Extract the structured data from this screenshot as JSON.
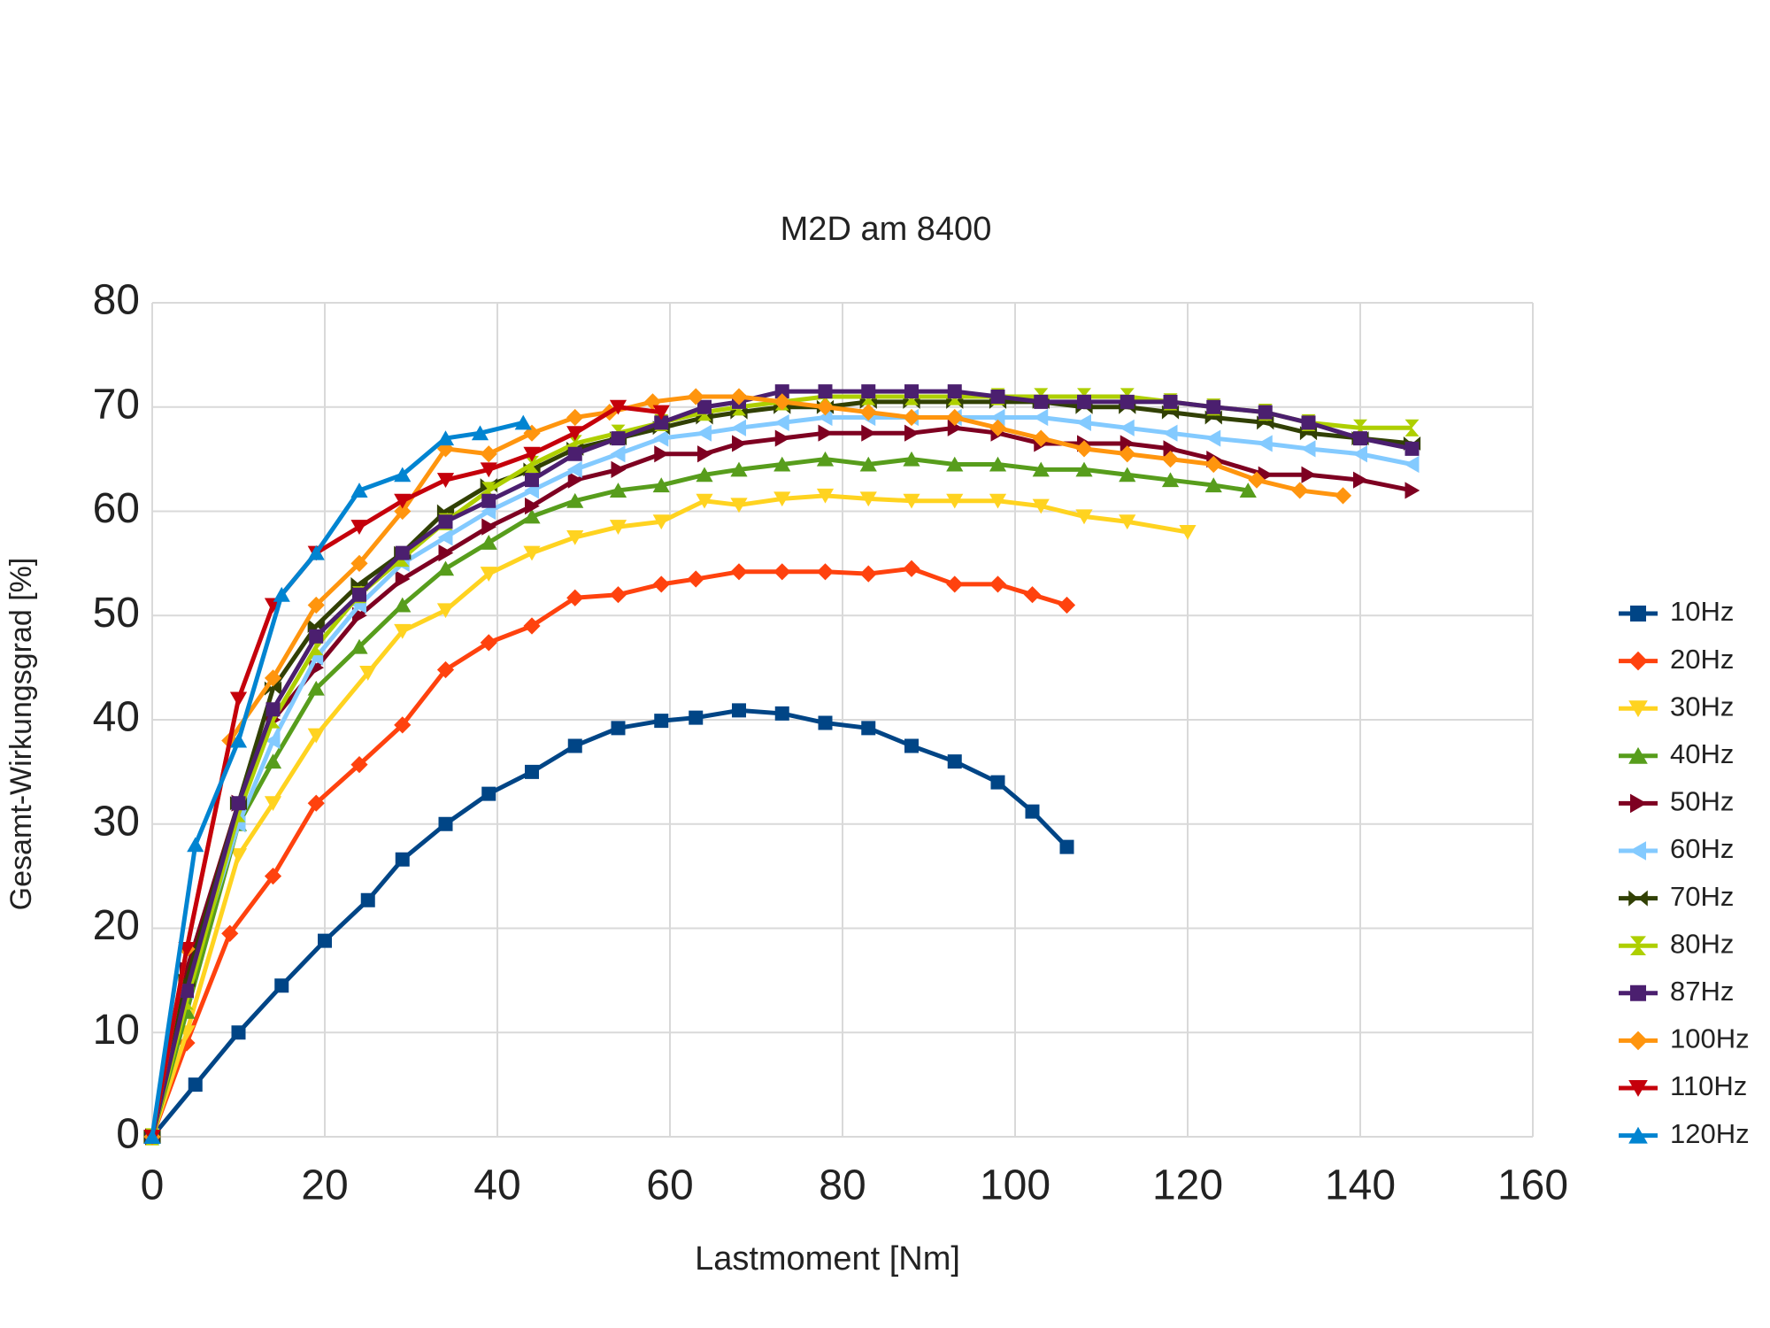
{
  "chart_data": {
    "type": "line",
    "title": "M2D am 8400",
    "x_label": "Lastmoment [Nm]",
    "y_label": "Gesamt-Wirkungsgrad [%]",
    "xlim": [
      0,
      160
    ],
    "xticks": [
      0,
      20,
      40,
      60,
      80,
      100,
      120,
      140,
      160
    ],
    "ylim": [
      0,
      80
    ],
    "yticks": [
      0,
      10,
      20,
      30,
      40,
      50,
      60,
      70,
      80
    ],
    "grid": true,
    "legend": "right",
    "series": [
      {
        "name": "10Hz",
        "color": "#004586",
        "marker": "square",
        "x": [
          0,
          5,
          10,
          15,
          20,
          25,
          29,
          34,
          39,
          44,
          49,
          54,
          59,
          63,
          68,
          73,
          78,
          83,
          88,
          93,
          98,
          102,
          106
        ],
        "values": [
          0,
          5,
          10,
          14.5,
          18.8,
          22.7,
          26.6,
          30,
          32.9,
          35,
          37.5,
          39.2,
          39.9,
          40.2,
          40.9,
          40.6,
          39.7,
          39.2,
          37.5,
          36,
          34,
          31.2,
          27.8
        ]
      },
      {
        "name": "20Hz",
        "color": "#ff420e",
        "marker": "diamond",
        "x": [
          0,
          4,
          9,
          14,
          19,
          24,
          29,
          34,
          39,
          44,
          49,
          54,
          59,
          63,
          68,
          73,
          78,
          83,
          88,
          93,
          98,
          102,
          106
        ],
        "values": [
          0,
          9,
          19.5,
          25,
          32,
          35.7,
          39.5,
          44.8,
          47.4,
          49,
          51.7,
          52,
          53,
          53.5,
          54.2,
          54.2,
          54.2,
          54,
          54.5,
          53,
          53,
          52,
          51
        ]
      },
      {
        "name": "30Hz",
        "color": "#ffd320",
        "marker": "triangle-down",
        "x": [
          0,
          4,
          10,
          14,
          19,
          25,
          29,
          34,
          39,
          44,
          49,
          54,
          59,
          64,
          68,
          73,
          78,
          83,
          88,
          93,
          98,
          103,
          108,
          113,
          120
        ],
        "values": [
          0,
          10,
          27,
          32,
          38.5,
          44.5,
          48.5,
          50.5,
          54,
          56,
          57.5,
          58.5,
          59,
          61,
          60.6,
          61.2,
          61.5,
          61.2,
          61,
          61,
          61,
          60.5,
          59.5,
          59,
          58
        ]
      },
      {
        "name": "40Hz",
        "color": "#579d1c",
        "marker": "triangle-up",
        "x": [
          0,
          4,
          10,
          14,
          19,
          24,
          29,
          34,
          39,
          44,
          49,
          54,
          59,
          64,
          68,
          73,
          78,
          83,
          88,
          93,
          98,
          103,
          108,
          113,
          118,
          123,
          127
        ],
        "values": [
          0,
          12,
          30,
          36,
          43,
          47,
          51,
          54.5,
          57,
          59.5,
          61,
          62,
          62.5,
          63.5,
          64,
          64.5,
          65,
          64.5,
          65,
          64.5,
          64.5,
          64,
          64,
          63.5,
          63,
          62.5,
          62
        ]
      },
      {
        "name": "50Hz",
        "color": "#7e0021",
        "marker": "triangle-right",
        "x": [
          0,
          4,
          10,
          14,
          19,
          24,
          29,
          34,
          39,
          44,
          49,
          54,
          59,
          64,
          68,
          73,
          78,
          83,
          88,
          93,
          98,
          103,
          108,
          113,
          118,
          123,
          129,
          134,
          140,
          146
        ],
        "values": [
          0,
          16,
          32,
          40,
          45,
          50,
          53.5,
          56,
          58.5,
          60.5,
          63,
          64,
          65.5,
          65.5,
          66.5,
          67,
          67.5,
          67.5,
          67.5,
          68,
          67.5,
          66.5,
          66.5,
          66.5,
          66,
          65,
          63.5,
          63.5,
          63,
          62
        ]
      },
      {
        "name": "60Hz",
        "color": "#83caff",
        "marker": "triangle-left",
        "x": [
          0,
          4,
          10,
          14,
          19,
          24,
          29,
          34,
          39,
          44,
          49,
          54,
          59,
          64,
          68,
          73,
          78,
          83,
          88,
          93,
          98,
          103,
          108,
          113,
          118,
          123,
          129,
          134,
          140,
          146
        ],
        "values": [
          0,
          14,
          30,
          38,
          46,
          51,
          55,
          57.5,
          60,
          62,
          64,
          65.5,
          67,
          67.5,
          68,
          68.5,
          69,
          69,
          69,
          69,
          69,
          69,
          68.5,
          68,
          67.5,
          67,
          66.5,
          66,
          65.5,
          64.5
        ]
      },
      {
        "name": "70Hz",
        "color": "#314004",
        "marker": "bowtie",
        "x": [
          0,
          4,
          10,
          14,
          19,
          24,
          29,
          34,
          39,
          44,
          49,
          54,
          59,
          64,
          68,
          73,
          78,
          83,
          88,
          93,
          98,
          103,
          108,
          113,
          118,
          123,
          129,
          134,
          140,
          146
        ],
        "values": [
          0,
          15,
          32,
          43,
          49,
          53,
          56,
          60,
          62.5,
          64,
          66,
          67,
          68,
          69,
          69.5,
          70,
          70,
          70.5,
          70.5,
          70.5,
          70.5,
          70.5,
          70,
          70,
          69.5,
          69,
          68.5,
          67.5,
          67,
          66.5
        ]
      },
      {
        "name": "80Hz",
        "color": "#aecf00",
        "marker": "hourglass",
        "x": [
          0,
          4,
          10,
          14,
          19,
          24,
          29,
          34,
          39,
          44,
          49,
          54,
          59,
          64,
          68,
          73,
          78,
          83,
          88,
          93,
          98,
          103,
          108,
          113,
          118,
          123,
          129,
          134,
          140,
          146
        ],
        "values": [
          0,
          13,
          31,
          40,
          47,
          52,
          55.5,
          59,
          62,
          64.5,
          66.5,
          67.5,
          68.5,
          69.5,
          70,
          70.5,
          71,
          71,
          71,
          71,
          71,
          71,
          71,
          71,
          70.5,
          70,
          69.5,
          68.5,
          68,
          68
        ]
      },
      {
        "name": "87Hz",
        "color": "#4b1f6f",
        "marker": "square",
        "x": [
          0,
          4,
          10,
          14,
          19,
          24,
          29,
          34,
          39,
          44,
          49,
          54,
          59,
          64,
          68,
          73,
          78,
          83,
          88,
          93,
          98,
          103,
          108,
          113,
          118,
          123,
          129,
          134,
          140,
          146
        ],
        "values": [
          0,
          14,
          32,
          41,
          48,
          52,
          56,
          59,
          61,
          63,
          65.5,
          67,
          68.5,
          70,
          70.5,
          71.5,
          71.5,
          71.5,
          71.5,
          71.5,
          71,
          70.5,
          70.5,
          70.5,
          70.5,
          70,
          69.5,
          68.5,
          67,
          66
        ]
      },
      {
        "name": "100Hz",
        "color": "#ff950e",
        "marker": "diamond",
        "x": [
          0,
          4,
          9,
          14,
          19,
          24,
          29,
          34,
          39,
          44,
          49,
          53,
          58,
          63,
          68,
          73,
          78,
          83,
          88,
          93,
          98,
          103,
          108,
          113,
          118,
          123,
          128,
          133,
          138
        ],
        "values": [
          0,
          18,
          38,
          44,
          51,
          55,
          60,
          66,
          65.5,
          67.5,
          69,
          69.5,
          70.5,
          71,
          71,
          70.5,
          70,
          69.5,
          69,
          69,
          68,
          67,
          66,
          65.5,
          65,
          64.5,
          63,
          62,
          61.5
        ]
      },
      {
        "name": "110Hz",
        "color": "#c5000b",
        "marker": "triangle-down",
        "x": [
          0,
          4,
          10,
          14,
          19,
          24,
          29,
          34,
          39,
          44,
          49,
          54,
          59
        ],
        "values": [
          0,
          18,
          42,
          51,
          56,
          58.5,
          61,
          63,
          64,
          65.5,
          67.5,
          70,
          69.5
        ]
      },
      {
        "name": "120Hz",
        "color": "#0084d1",
        "marker": "triangle-up",
        "x": [
          0,
          5,
          10,
          15,
          19,
          24,
          29,
          34,
          38,
          43
        ],
        "values": [
          0,
          28,
          38,
          52,
          56,
          62,
          63.5,
          67,
          67.5,
          68.5
        ]
      }
    ]
  }
}
